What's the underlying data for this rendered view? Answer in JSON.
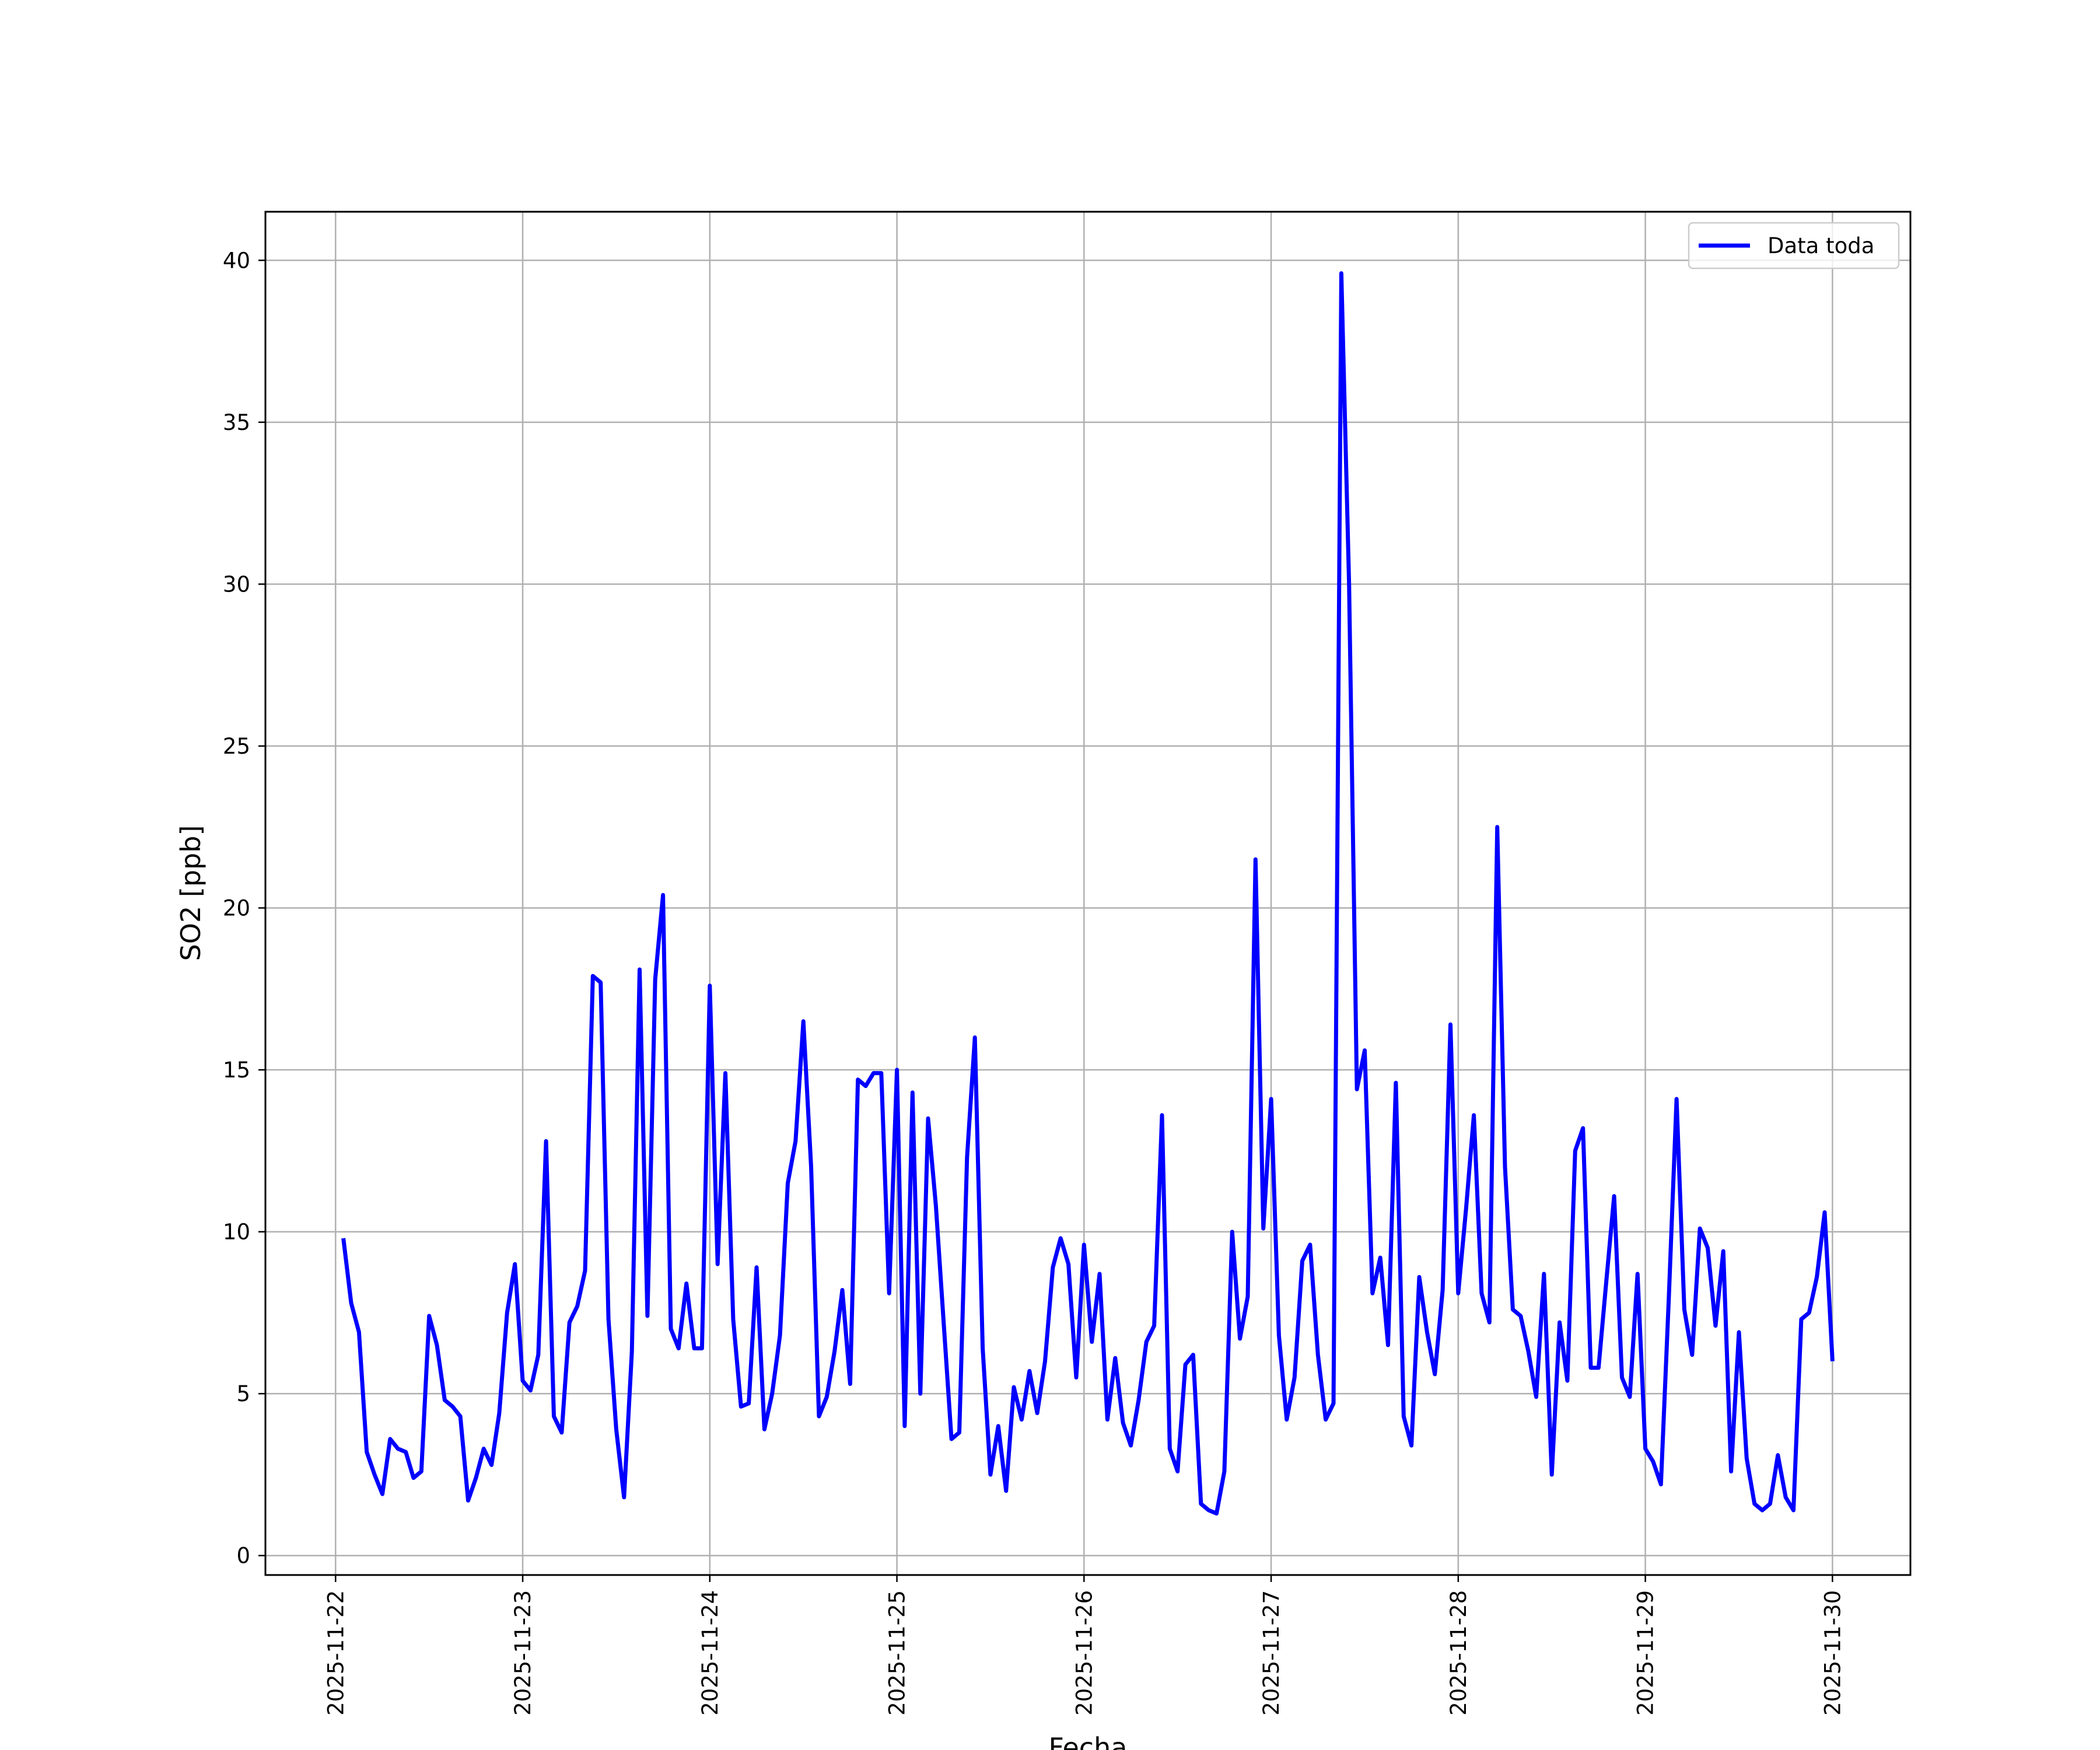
{
  "chart_data": {
    "type": "line",
    "xlabel": "Fecha",
    "ylabel": "SO2 [ppb]",
    "ylim": [
      -0.6,
      41.5
    ],
    "xlim": [
      "2025-11-21 15:00",
      "2025-11-30 10:00"
    ],
    "grid": true,
    "legend_position": "top-right",
    "y_ticks": [
      0,
      5,
      10,
      15,
      20,
      25,
      30,
      35,
      40
    ],
    "x_ticks": [
      "2025-11-22",
      "2025-11-23",
      "2025-11-24",
      "2025-11-25",
      "2025-11-26",
      "2025-11-27",
      "2025-11-28",
      "2025-11-29",
      "2025-11-30"
    ],
    "series": [
      {
        "name": "Data toda",
        "color": "#0000ff",
        "x": [
          "2025-11-22 01:00",
          "2025-11-22 02:00",
          "2025-11-22 03:00",
          "2025-11-22 04:00",
          "2025-11-22 05:00",
          "2025-11-22 06:00",
          "2025-11-22 07:00",
          "2025-11-22 08:00",
          "2025-11-22 09:00",
          "2025-11-22 10:00",
          "2025-11-22 11:00",
          "2025-11-22 12:00",
          "2025-11-22 13:00",
          "2025-11-22 14:00",
          "2025-11-22 15:00",
          "2025-11-22 16:00",
          "2025-11-22 17:00",
          "2025-11-22 18:00",
          "2025-11-22 19:00",
          "2025-11-22 20:00",
          "2025-11-22 21:00",
          "2025-11-22 22:00",
          "2025-11-22 23:00",
          "2025-11-23 00:00",
          "2025-11-23 01:00",
          "2025-11-23 02:00",
          "2025-11-23 03:00",
          "2025-11-23 04:00",
          "2025-11-23 05:00",
          "2025-11-23 06:00",
          "2025-11-23 07:00",
          "2025-11-23 08:00",
          "2025-11-23 09:00",
          "2025-11-23 10:00",
          "2025-11-23 11:00",
          "2025-11-23 12:00",
          "2025-11-23 13:00",
          "2025-11-23 14:00",
          "2025-11-23 15:00",
          "2025-11-23 16:00",
          "2025-11-23 17:00",
          "2025-11-23 18:00",
          "2025-11-23 19:00",
          "2025-11-23 20:00",
          "2025-11-23 21:00",
          "2025-11-23 22:00",
          "2025-11-23 23:00",
          "2025-11-24 00:00",
          "2025-11-24 01:00",
          "2025-11-24 02:00",
          "2025-11-24 03:00",
          "2025-11-24 04:00",
          "2025-11-24 05:00",
          "2025-11-24 06:00",
          "2025-11-24 07:00",
          "2025-11-24 08:00",
          "2025-11-24 09:00",
          "2025-11-24 10:00",
          "2025-11-24 11:00",
          "2025-11-24 12:00",
          "2025-11-24 13:00",
          "2025-11-24 14:00",
          "2025-11-24 15:00",
          "2025-11-24 16:00",
          "2025-11-24 17:00",
          "2025-11-24 18:00",
          "2025-11-24 19:00",
          "2025-11-24 20:00",
          "2025-11-24 21:00",
          "2025-11-24 22:00",
          "2025-11-24 23:00",
          "2025-11-25 00:00",
          "2025-11-25 01:00",
          "2025-11-25 02:00",
          "2025-11-25 03:00",
          "2025-11-25 04:00",
          "2025-11-25 05:00",
          "2025-11-25 06:00",
          "2025-11-25 07:00",
          "2025-11-25 08:00",
          "2025-11-25 09:00",
          "2025-11-25 10:00",
          "2025-11-25 11:00",
          "2025-11-25 12:00",
          "2025-11-25 13:00",
          "2025-11-25 14:00",
          "2025-11-25 15:00",
          "2025-11-25 16:00",
          "2025-11-25 17:00",
          "2025-11-25 18:00",
          "2025-11-25 19:00",
          "2025-11-25 20:00",
          "2025-11-25 21:00",
          "2025-11-25 22:00",
          "2025-11-25 23:00",
          "2025-11-26 00:00",
          "2025-11-26 01:00",
          "2025-11-26 02:00",
          "2025-11-26 03:00",
          "2025-11-26 04:00",
          "2025-11-26 05:00",
          "2025-11-26 06:00",
          "2025-11-26 07:00",
          "2025-11-26 08:00",
          "2025-11-26 09:00",
          "2025-11-26 10:00",
          "2025-11-26 11:00",
          "2025-11-26 12:00",
          "2025-11-26 13:00",
          "2025-11-26 14:00",
          "2025-11-26 15:00",
          "2025-11-26 16:00",
          "2025-11-26 17:00",
          "2025-11-26 18:00",
          "2025-11-26 19:00",
          "2025-11-26 20:00",
          "2025-11-26 21:00",
          "2025-11-26 22:00",
          "2025-11-26 23:00",
          "2025-11-27 00:00",
          "2025-11-27 01:00",
          "2025-11-27 02:00",
          "2025-11-27 03:00",
          "2025-11-27 04:00",
          "2025-11-27 05:00",
          "2025-11-27 06:00",
          "2025-11-27 07:00",
          "2025-11-27 08:00",
          "2025-11-27 09:00",
          "2025-11-27 10:00",
          "2025-11-27 11:00",
          "2025-11-27 12:00",
          "2025-11-27 13:00",
          "2025-11-27 14:00",
          "2025-11-27 15:00",
          "2025-11-27 16:00",
          "2025-11-27 17:00",
          "2025-11-27 18:00",
          "2025-11-27 19:00",
          "2025-11-27 20:00",
          "2025-11-27 21:00",
          "2025-11-27 22:00",
          "2025-11-27 23:00",
          "2025-11-28 00:00",
          "2025-11-28 01:00",
          "2025-11-28 02:00",
          "2025-11-28 03:00",
          "2025-11-28 04:00",
          "2025-11-28 05:00",
          "2025-11-28 06:00",
          "2025-11-28 07:00",
          "2025-11-28 08:00",
          "2025-11-28 09:00",
          "2025-11-28 10:00",
          "2025-11-28 11:00",
          "2025-11-28 12:00",
          "2025-11-28 13:00",
          "2025-11-28 14:00",
          "2025-11-28 15:00",
          "2025-11-28 16:00",
          "2025-11-28 17:00",
          "2025-11-28 18:00",
          "2025-11-28 19:00",
          "2025-11-28 20:00",
          "2025-11-28 21:00",
          "2025-11-28 22:00",
          "2025-11-28 23:00",
          "2025-11-29 00:00",
          "2025-11-29 01:00",
          "2025-11-29 02:00",
          "2025-11-29 03:00",
          "2025-11-29 04:00",
          "2025-11-29 05:00",
          "2025-11-29 06:00",
          "2025-11-29 07:00",
          "2025-11-29 08:00",
          "2025-11-29 09:00",
          "2025-11-29 10:00",
          "2025-11-29 11:00",
          "2025-11-29 12:00",
          "2025-11-29 13:00",
          "2025-11-29 14:00",
          "2025-11-29 15:00",
          "2025-11-29 16:00",
          "2025-11-29 17:00",
          "2025-11-29 18:00",
          "2025-11-29 19:00",
          "2025-11-29 20:00",
          "2025-11-29 21:00",
          "2025-11-29 22:00",
          "2025-11-29 23:00",
          "2025-11-30 00:00"
        ],
        "values": [
          9.8,
          7.8,
          6.9,
          3.2,
          2.5,
          1.9,
          3.6,
          3.3,
          3.2,
          2.4,
          2.6,
          7.4,
          6.5,
          4.8,
          4.6,
          4.3,
          1.7,
          2.4,
          3.3,
          2.8,
          4.4,
          7.5,
          9.0,
          5.4,
          5.1,
          6.2,
          12.8,
          4.3,
          3.8,
          7.2,
          7.7,
          8.8,
          17.9,
          17.7,
          7.3,
          3.9,
          1.8,
          6.3,
          18.1,
          7.4,
          17.8,
          20.4,
          7.0,
          6.4,
          8.4,
          6.4,
          6.4,
          17.6,
          9.0,
          14.9,
          7.3,
          4.6,
          4.7,
          8.9,
          3.9,
          5.0,
          6.8,
          11.5,
          12.8,
          16.5,
          12.0,
          4.3,
          4.9,
          6.3,
          8.2,
          5.3,
          14.7,
          14.5,
          14.9,
          14.9,
          8.1,
          15.0,
          4.0,
          14.3,
          5.0,
          13.5,
          10.8,
          7.2,
          3.6,
          3.8,
          12.3,
          16.0,
          6.4,
          2.5,
          4.0,
          2.0,
          5.2,
          4.2,
          5.7,
          4.4,
          6.0,
          8.9,
          9.8,
          9.0,
          5.5,
          9.6,
          6.6,
          8.7,
          4.2,
          6.1,
          4.1,
          3.4,
          4.8,
          6.6,
          7.1,
          13.6,
          3.3,
          2.6,
          5.9,
          6.2,
          1.6,
          1.4,
          1.3,
          2.6,
          10.0,
          6.7,
          8.0,
          21.5,
          10.1,
          14.1,
          6.8,
          4.2,
          5.5,
          9.1,
          9.6,
          6.2,
          4.2,
          4.7,
          39.6,
          30.0,
          14.4,
          15.6,
          8.1,
          9.2,
          6.5,
          14.6,
          4.3,
          3.4,
          8.6,
          6.9,
          5.6,
          8.2,
          16.4,
          8.1,
          10.7,
          13.6,
          8.1,
          7.2,
          22.5,
          12.0,
          7.6,
          7.4,
          6.3,
          4.9,
          8.7,
          2.5,
          7.2,
          5.4,
          12.5,
          13.2,
          5.8,
          5.8,
          8.5,
          11.1,
          5.5,
          4.9,
          8.7,
          3.3,
          2.9,
          2.2,
          7.9,
          14.1,
          7.6,
          6.2,
          10.1,
          9.5,
          7.1,
          9.4,
          2.6,
          6.9,
          3.0,
          1.6,
          1.4,
          1.6,
          3.1,
          1.8,
          1.4,
          7.3,
          7.5,
          8.6,
          10.6,
          6.0
        ]
      }
    ]
  }
}
